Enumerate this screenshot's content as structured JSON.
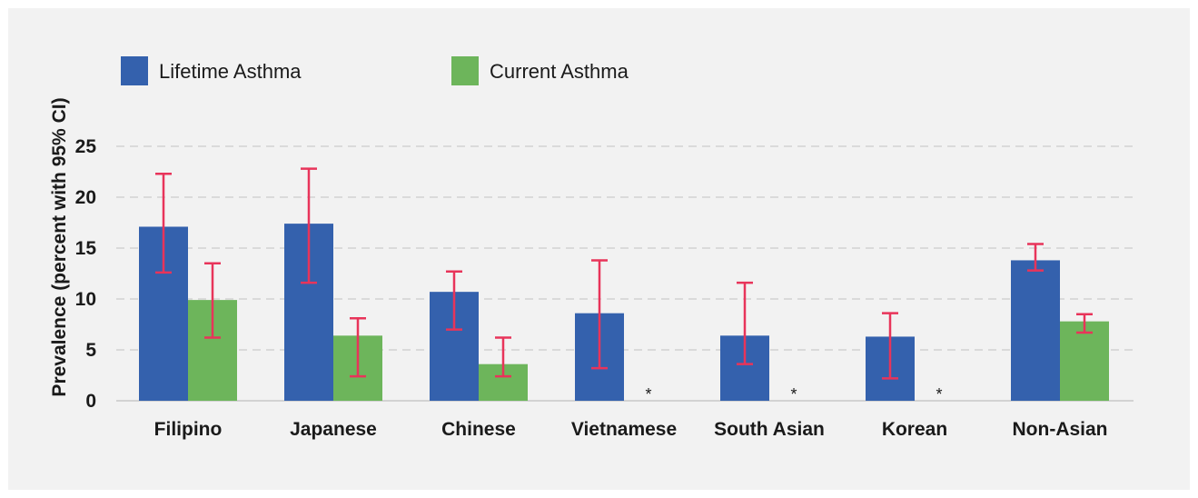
{
  "chart_data": {
    "type": "bar",
    "title": "",
    "xlabel": "",
    "ylabel": "Prevalence (percent with 95% CI)",
    "ylim": [
      0,
      25
    ],
    "yticks": [
      0,
      5,
      10,
      15,
      20,
      25
    ],
    "grid": true,
    "legend_position": "top-left",
    "categories": [
      "Filipino",
      "Japanese",
      "Chinese",
      "Vietnamese",
      "South Asian",
      "Korean",
      "Non-Asian"
    ],
    "series": [
      {
        "name": "Lifetime Asthma",
        "color": "#3461ad",
        "values": [
          17.1,
          17.4,
          10.7,
          8.6,
          6.4,
          6.3,
          13.8
        ],
        "ci_low": [
          12.6,
          11.6,
          7.0,
          3.2,
          3.6,
          2.2,
          12.8
        ],
        "ci_high": [
          22.3,
          22.8,
          12.7,
          13.8,
          11.6,
          8.6,
          15.4
        ],
        "markers": [
          "",
          "",
          "",
          "",
          "",
          "",
          ""
        ]
      },
      {
        "name": "Current Asthma",
        "color": "#6db55b",
        "values": [
          9.9,
          6.4,
          3.6,
          null,
          null,
          null,
          7.8
        ],
        "ci_low": [
          6.2,
          2.4,
          2.4,
          null,
          null,
          null,
          6.7
        ],
        "ci_high": [
          13.5,
          8.1,
          6.2,
          null,
          null,
          null,
          8.5
        ],
        "markers": [
          "",
          "",
          "",
          "*",
          "*",
          "*",
          ""
        ]
      }
    ],
    "errorbar_color": "#e8345a"
  }
}
